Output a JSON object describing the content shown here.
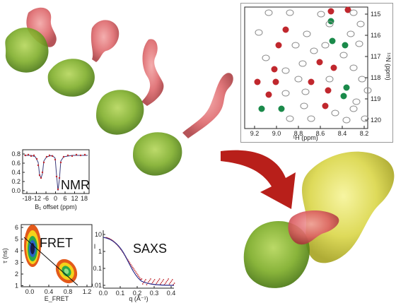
{
  "nmr_hsqc": {
    "x_ticks": [
      "9.2",
      "9.0",
      "8.8",
      "8.6",
      "8.4",
      "8.2"
    ],
    "y_ticks": [
      "115",
      "116",
      "117",
      "118",
      "119",
      "120"
    ],
    "xlabel": "¹H (ppm)",
    "ylabel": "¹⁵N (ppm)",
    "colors": {
      "gray": "#8a8a8a",
      "red": "#c0272d",
      "green": "#1a8a4a"
    }
  },
  "nmr_cest": {
    "label": "NMR",
    "y_ticks": [
      "0.8",
      "0.6",
      "0.4",
      "0.2",
      "0.0"
    ],
    "x_ticks": [
      "-18",
      "-12",
      "-6",
      "0",
      "6",
      "12",
      "18"
    ],
    "xlabel": "B₁ offset (ppm)"
  },
  "fret": {
    "label": "FRET",
    "y_ticks": [
      "6",
      "5",
      "4",
      "3",
      "2",
      "1"
    ],
    "x_ticks": [
      "0.0",
      "0.4",
      "0.8",
      "1.2"
    ],
    "ylabel": "τ (ns)",
    "xlabel": "E_FRET"
  },
  "saxs": {
    "label": "SAXS",
    "y_ticks": [
      "10",
      "1",
      "0.1",
      "0.01"
    ],
    "x_ticks": [
      "0.0",
      "0.1",
      "0.2",
      "0.3",
      "0.4"
    ],
    "ylabel": "I",
    "xlabel": "q (Å⁻¹)"
  },
  "colors": {
    "protein_green": "#7fae2a",
    "disorder_red": "#d9585a",
    "partner_yellow": "#d9d94a",
    "arrow": "#b81f1a"
  }
}
